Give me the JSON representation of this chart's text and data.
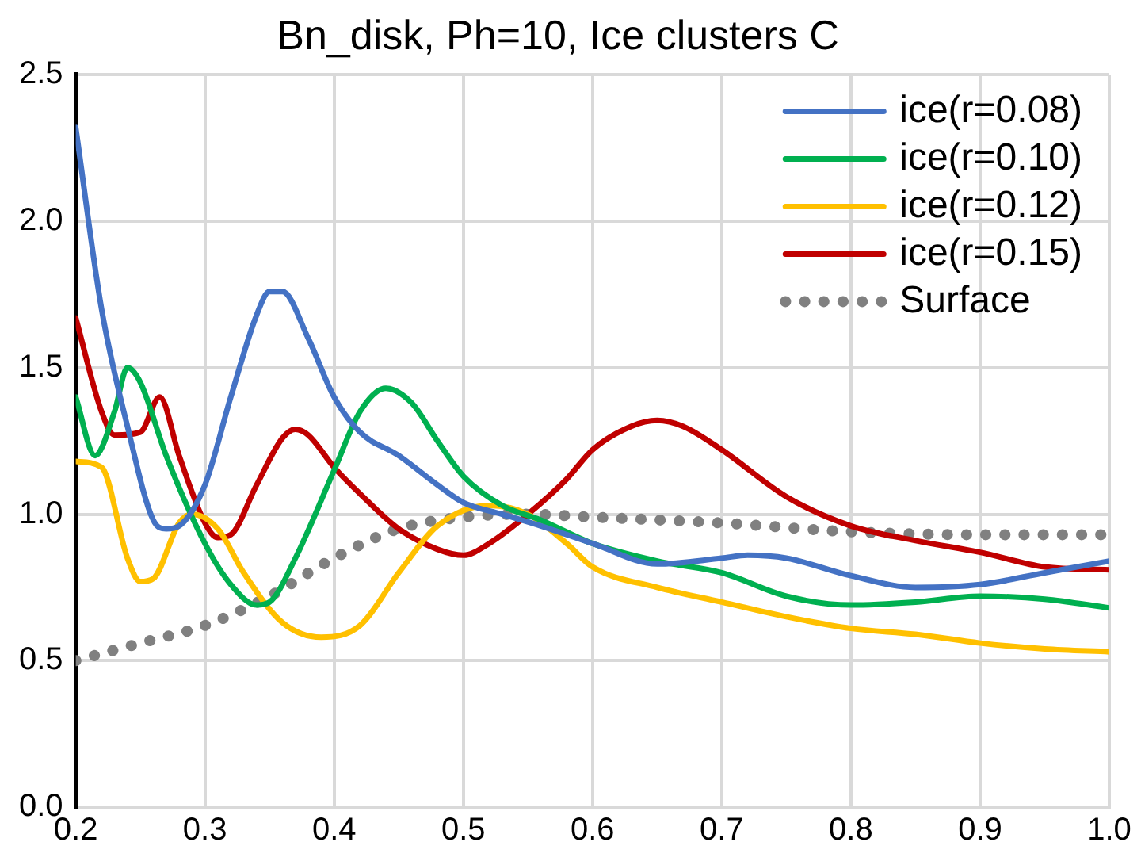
{
  "chart_data": {
    "type": "line",
    "title": "Bn_disk, Ph=10, Ice clusters C",
    "xlim": [
      0.2,
      1.0
    ],
    "xticks": [
      0.2,
      0.3,
      0.4,
      0.5,
      0.6,
      0.7,
      0.8,
      0.9,
      {
        "value": 1.0,
        "label": "1.0"
      }
    ],
    "ylim": [
      0,
      2.5
    ],
    "yticks": [
      {
        "value": 0,
        "label": "0.0"
      },
      {
        "value": 0.5,
        "label": "0.5"
      },
      {
        "value": 1.0,
        "label": "1.0"
      },
      {
        "value": 1.5,
        "label": "1.5"
      },
      {
        "value": 2.0,
        "label": "2.0"
      },
      2.5
    ],
    "grid": true,
    "legend": "top right",
    "marker": "none",
    "series": [
      {
        "name": "ice(r=0.08)",
        "color": "#4472c4",
        "x": [
          0.2,
          0.22,
          0.24,
          0.26,
          0.27,
          0.28,
          0.3,
          0.32,
          0.34,
          0.35,
          0.36,
          0.38,
          0.4,
          0.42,
          0.45,
          0.48,
          0.5,
          0.53,
          0.56,
          0.6,
          0.65,
          0.7,
          0.72,
          0.75,
          0.8,
          0.85,
          0.9,
          0.95,
          1.0
        ],
        "values": [
          2.32,
          1.7,
          1.3,
          0.98,
          0.95,
          0.96,
          1.1,
          1.4,
          1.68,
          1.76,
          1.76,
          1.6,
          1.4,
          1.28,
          1.2,
          1.1,
          1.04,
          1.0,
          0.96,
          0.9,
          0.83,
          0.85,
          0.86,
          0.85,
          0.79,
          0.75,
          0.76,
          0.8,
          0.84
        ]
      },
      {
        "name": "ice(r=0.10)",
        "color": "#00b050",
        "x": [
          0.2,
          0.215,
          0.23,
          0.24,
          0.25,
          0.27,
          0.3,
          0.32,
          0.34,
          0.35,
          0.37,
          0.4,
          0.42,
          0.44,
          0.46,
          0.48,
          0.5,
          0.53,
          0.56,
          0.6,
          0.65,
          0.7,
          0.75,
          0.8,
          0.85,
          0.9,
          0.95,
          1.0
        ],
        "values": [
          1.4,
          1.2,
          1.35,
          1.5,
          1.45,
          1.2,
          0.9,
          0.76,
          0.69,
          0.7,
          0.85,
          1.15,
          1.35,
          1.43,
          1.38,
          1.25,
          1.13,
          1.03,
          0.98,
          0.9,
          0.84,
          0.8,
          0.72,
          0.69,
          0.7,
          0.72,
          0.71,
          0.68
        ]
      },
      {
        "name": "ice(r=0.12)",
        "color": "#ffc000",
        "x": [
          0.2,
          0.22,
          0.24,
          0.25,
          0.26,
          0.28,
          0.29,
          0.31,
          0.33,
          0.36,
          0.39,
          0.42,
          0.45,
          0.48,
          0.52,
          0.55,
          0.58,
          0.6,
          0.65,
          0.7,
          0.75,
          0.8,
          0.85,
          0.9,
          0.95,
          1.0
        ],
        "values": [
          1.18,
          1.16,
          0.85,
          0.77,
          0.78,
          0.97,
          1.0,
          0.95,
          0.8,
          0.63,
          0.58,
          0.62,
          0.8,
          0.96,
          1.03,
          1.0,
          0.9,
          0.82,
          0.75,
          0.7,
          0.65,
          0.61,
          0.59,
          0.56,
          0.54,
          0.53
        ]
      },
      {
        "name": "ice(r=0.15)",
        "color": "#c00000",
        "x": [
          0.2,
          0.22,
          0.23,
          0.25,
          0.265,
          0.28,
          0.3,
          0.31,
          0.32,
          0.34,
          0.36,
          0.37,
          0.38,
          0.4,
          0.42,
          0.45,
          0.48,
          0.5,
          0.52,
          0.55,
          0.58,
          0.6,
          0.63,
          0.65,
          0.67,
          0.7,
          0.75,
          0.8,
          0.85,
          0.9,
          0.95,
          1.0
        ],
        "values": [
          1.67,
          1.35,
          1.27,
          1.28,
          1.4,
          1.2,
          0.97,
          0.92,
          0.93,
          1.1,
          1.26,
          1.29,
          1.27,
          1.16,
          1.07,
          0.95,
          0.88,
          0.86,
          0.9,
          1.0,
          1.12,
          1.22,
          1.3,
          1.32,
          1.3,
          1.22,
          1.06,
          0.96,
          0.91,
          0.87,
          0.82,
          0.81
        ]
      },
      {
        "name": "Surface",
        "color": "#808080",
        "line_style": "dotted",
        "x": [
          0.2,
          0.25,
          0.3,
          0.35,
          0.4,
          0.45,
          0.5,
          0.55,
          0.6,
          0.7,
          0.8,
          0.9,
          1.0
        ],
        "values": [
          0.5,
          0.56,
          0.62,
          0.72,
          0.85,
          0.95,
          0.99,
          1.0,
          0.99,
          0.97,
          0.94,
          0.93,
          0.93
        ]
      }
    ]
  }
}
